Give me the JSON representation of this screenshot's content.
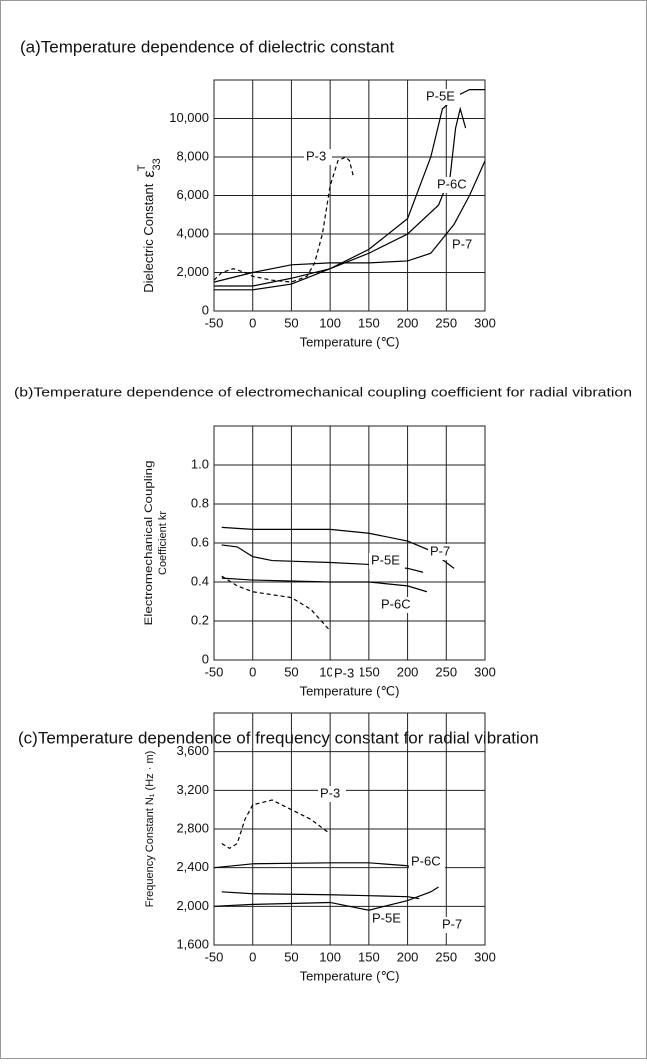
{
  "chart_data": [
    {
      "type": "line",
      "title": "(a)Temperature dependence of dielectric constant",
      "ylabel": "Dielectric Constant",
      "ylabel_symbol": "ε",
      "ylabel_sub": "33",
      "ylabel_sup": "T",
      "xlabel": "Temperature (℃)",
      "xlim": [
        -50,
        300
      ],
      "xticks": [
        -50,
        0,
        50,
        100,
        150,
        200,
        250,
        300
      ],
      "ylim": [
        0,
        12000
      ],
      "yticks": [
        0,
        {
          "value": 2000,
          "label": "2,000"
        },
        {
          "value": 4000,
          "label": "4,000"
        },
        {
          "value": 6000,
          "label": "6,000"
        },
        {
          "value": 8000,
          "label": "8,000"
        },
        {
          "value": 10000,
          "label": "10,000"
        }
      ],
      "grid": true,
      "series": [
        {
          "name": "P-3",
          "color": "#000000",
          "dash": true,
          "x": [
            -50,
            -40,
            -25,
            -10,
            0,
            25,
            50,
            70,
            80,
            90,
            100,
            110,
            120,
            125,
            130
          ],
          "values": [
            1600,
            2000,
            2200,
            2000,
            1800,
            1600,
            1500,
            1800,
            2500,
            4000,
            6500,
            7800,
            8000,
            7800,
            7000
          ]
        },
        {
          "name": "P-5E",
          "color": "#000000",
          "dash": false,
          "x": [
            -50,
            0,
            50,
            100,
            150,
            200,
            230,
            245,
            265,
            280,
            300
          ],
          "values": [
            1100,
            1100,
            1400,
            2200,
            3200,
            4800,
            8000,
            10500,
            11200,
            11500,
            11500
          ]
        },
        {
          "name": "P-6C",
          "color": "#000000",
          "dash": false,
          "x": [
            -50,
            0,
            50,
            100,
            150,
            200,
            240,
            255,
            262,
            268,
            275
          ],
          "values": [
            1300,
            1300,
            1700,
            2200,
            3000,
            4000,
            5500,
            7000,
            9500,
            10500,
            9500
          ]
        },
        {
          "name": "P-7",
          "color": "#000000",
          "dash": false,
          "x": [
            -50,
            0,
            50,
            100,
            150,
            200,
            230,
            260,
            280,
            300
          ],
          "values": [
            1500,
            2000,
            2400,
            2500,
            2500,
            2600,
            3000,
            4500,
            6000,
            7800
          ]
        }
      ]
    },
    {
      "type": "line",
      "title": "(b)Temperature dependence of electromechanical coupling coefficient for radial vibration",
      "ylabel": "Electromechanical Coupling",
      "ylabel2": "Coefficient kr",
      "xlabel": "Temperature (℃)",
      "xlim": [
        -50,
        300
      ],
      "xticks": [
        -50,
        0,
        50,
        100,
        150,
        200,
        250,
        300
      ],
      "ylim": [
        0,
        1.2
      ],
      "yticks": [
        0,
        0.2,
        0.4,
        0.6,
        0.8,
        {
          "value": 1,
          "label": "1.0"
        }
      ],
      "grid": true,
      "series": [
        {
          "name": "P-7",
          "color": "#000000",
          "dash": false,
          "x": [
            -40,
            0,
            100,
            150,
            200,
            230,
            260
          ],
          "values": [
            0.68,
            0.67,
            0.67,
            0.65,
            0.61,
            0.56,
            0.47
          ]
        },
        {
          "name": "P-5E",
          "color": "#000000",
          "dash": false,
          "x": [
            -40,
            -20,
            0,
            25,
            100,
            150,
            200,
            220
          ],
          "values": [
            0.59,
            0.58,
            0.53,
            0.51,
            0.5,
            0.49,
            0.47,
            0.45
          ]
        },
        {
          "name": "P-6C",
          "color": "#000000",
          "dash": false,
          "x": [
            -40,
            0,
            100,
            150,
            200,
            225
          ],
          "values": [
            0.42,
            0.41,
            0.4,
            0.4,
            0.38,
            0.35
          ]
        },
        {
          "name": "P-3",
          "color": "#000000",
          "dash": true,
          "x": [
            -40,
            -20,
            0,
            50,
            75,
            100
          ],
          "values": [
            0.43,
            0.38,
            0.35,
            0.32,
            0.26,
            0.15
          ]
        }
      ]
    },
    {
      "type": "line",
      "title": "(c)Temperature dependence of frequency constant for radial vibration",
      "ylabel": "Frequency Constant N₁ (Hz · m)",
      "xlabel": "Temperature (℃)",
      "xlim": [
        -50,
        300
      ],
      "xticks": [
        -50,
        0,
        50,
        100,
        150,
        200,
        250,
        300
      ],
      "ylim": [
        1600,
        4000
      ],
      "yticks": [
        {
          "value": 1600,
          "label": "1,600"
        },
        {
          "value": 2000,
          "label": "2,000"
        },
        {
          "value": 2400,
          "label": "2,400"
        },
        {
          "value": 2800,
          "label": "2,800"
        },
        {
          "value": 3200,
          "label": "3,200"
        },
        {
          "value": 3600,
          "label": "3,600"
        }
      ],
      "grid": true,
      "series": [
        {
          "name": "P-3",
          "color": "#000000",
          "dash": true,
          "x": [
            -40,
            -30,
            -20,
            -10,
            0,
            25,
            50,
            75,
            100
          ],
          "values": [
            2650,
            2600,
            2650,
            2900,
            3050,
            3100,
            3000,
            2900,
            2750
          ]
        },
        {
          "name": "P-6C",
          "color": "#000000",
          "dash": false,
          "x": [
            -50,
            0,
            100,
            150,
            200,
            215
          ],
          "values": [
            2400,
            2440,
            2450,
            2450,
            2420,
            2380
          ]
        },
        {
          "name": "P-5E",
          "color": "#000000",
          "dash": false,
          "x": [
            -40,
            0,
            100,
            150,
            200,
            215
          ],
          "values": [
            2150,
            2130,
            2120,
            2110,
            2100,
            2080
          ]
        },
        {
          "name": "P-7",
          "color": "#000000",
          "dash": false,
          "x": [
            -50,
            0,
            100,
            150,
            200,
            230,
            240
          ],
          "values": [
            2000,
            2020,
            2040,
            1960,
            2060,
            2150,
            2200
          ]
        }
      ]
    }
  ]
}
